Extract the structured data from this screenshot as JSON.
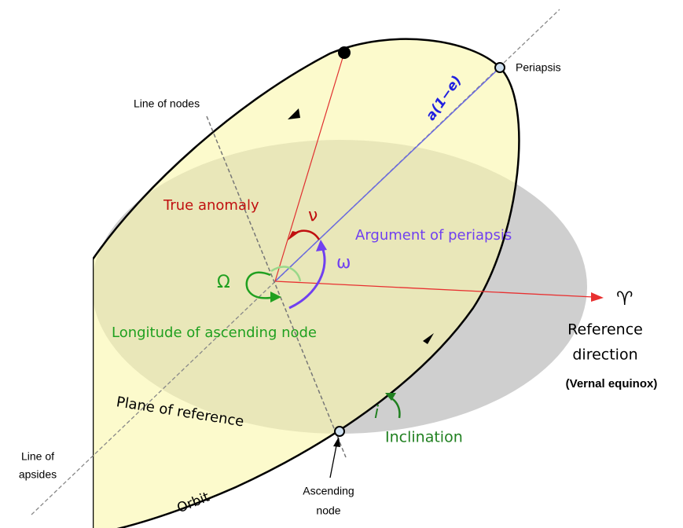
{
  "labels": {
    "periapsis": "Periapsis",
    "line_of_nodes": "Line of nodes",
    "periapsis_distance": "a(1−e)",
    "true_anomaly": "True anomaly",
    "nu": "ν",
    "argument_of_periapsis": "Argument of periapsis",
    "omega": "ω",
    "big_omega": "Ω",
    "longitude_of_ascending_node": "Longitude of ascending node",
    "aries": "♈",
    "reference_direction": [
      "Reference",
      "direction"
    ],
    "vernal_equinox": "(Vernal equinox)",
    "plane_of_reference": "Plane of reference",
    "i": "i",
    "inclination": "Inclination",
    "line_of_apsides": [
      "Line of",
      "apsides"
    ],
    "orbit": "Orbit",
    "ascending_node": [
      "Ascending",
      "node"
    ]
  }
}
